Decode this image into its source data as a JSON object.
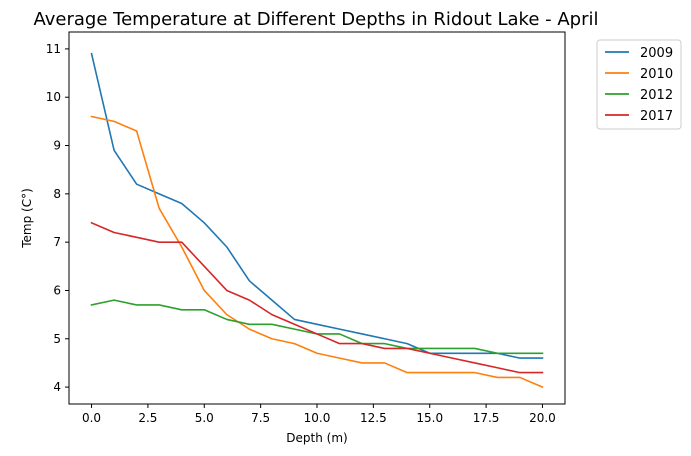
{
  "chart_data": {
    "type": "line",
    "title": "Average Temperature at Different Depths in Ridout Lake - April",
    "xlabel": "Depth (m)",
    "ylabel": "Temp (C°)",
    "xlim": [
      -1,
      21
    ],
    "ylim": [
      3.65,
      11.35
    ],
    "xticks": [
      "0.0",
      "2.5",
      "5.0",
      "7.5",
      "10.0",
      "12.5",
      "15.0",
      "17.5",
      "20.0"
    ],
    "yticks": [
      "4",
      "5",
      "6",
      "7",
      "8",
      "9",
      "10",
      "11"
    ],
    "legend_position": "outside-top-right",
    "x": [
      0,
      1,
      2,
      3,
      4,
      5,
      6,
      7,
      8,
      9,
      10,
      11,
      12,
      13,
      14,
      15,
      16,
      17,
      18,
      19,
      20
    ],
    "series": [
      {
        "name": "2009",
        "color": "#1f77b4",
        "values": [
          10.9,
          8.9,
          8.2,
          8.0,
          7.8,
          7.4,
          6.9,
          6.2,
          5.8,
          5.4,
          5.3,
          5.2,
          5.1,
          5.0,
          4.9,
          4.7,
          4.7,
          4.7,
          4.7,
          4.6,
          4.6
        ]
      },
      {
        "name": "2010",
        "color": "#ff7f0e",
        "values": [
          9.6,
          9.5,
          9.3,
          7.7,
          6.9,
          6.0,
          5.5,
          5.2,
          5.0,
          4.9,
          4.7,
          4.6,
          4.5,
          4.5,
          4.3,
          4.3,
          4.3,
          4.3,
          4.2,
          4.2,
          4.0
        ]
      },
      {
        "name": "2012",
        "color": "#2ca02c",
        "values": [
          5.7,
          5.8,
          5.7,
          5.7,
          5.6,
          5.6,
          5.4,
          5.3,
          5.3,
          5.2,
          5.1,
          5.1,
          4.9,
          4.9,
          4.8,
          4.8,
          4.8,
          4.8,
          4.7,
          4.7,
          4.7
        ]
      },
      {
        "name": "2017",
        "color": "#d62728",
        "values": [
          7.4,
          7.2,
          7.1,
          7.0,
          7.0,
          6.5,
          6.0,
          5.8,
          5.5,
          5.3,
          5.1,
          4.9,
          4.9,
          4.8,
          4.8,
          4.7,
          4.6,
          4.5,
          4.4,
          4.3,
          4.3
        ]
      }
    ]
  }
}
